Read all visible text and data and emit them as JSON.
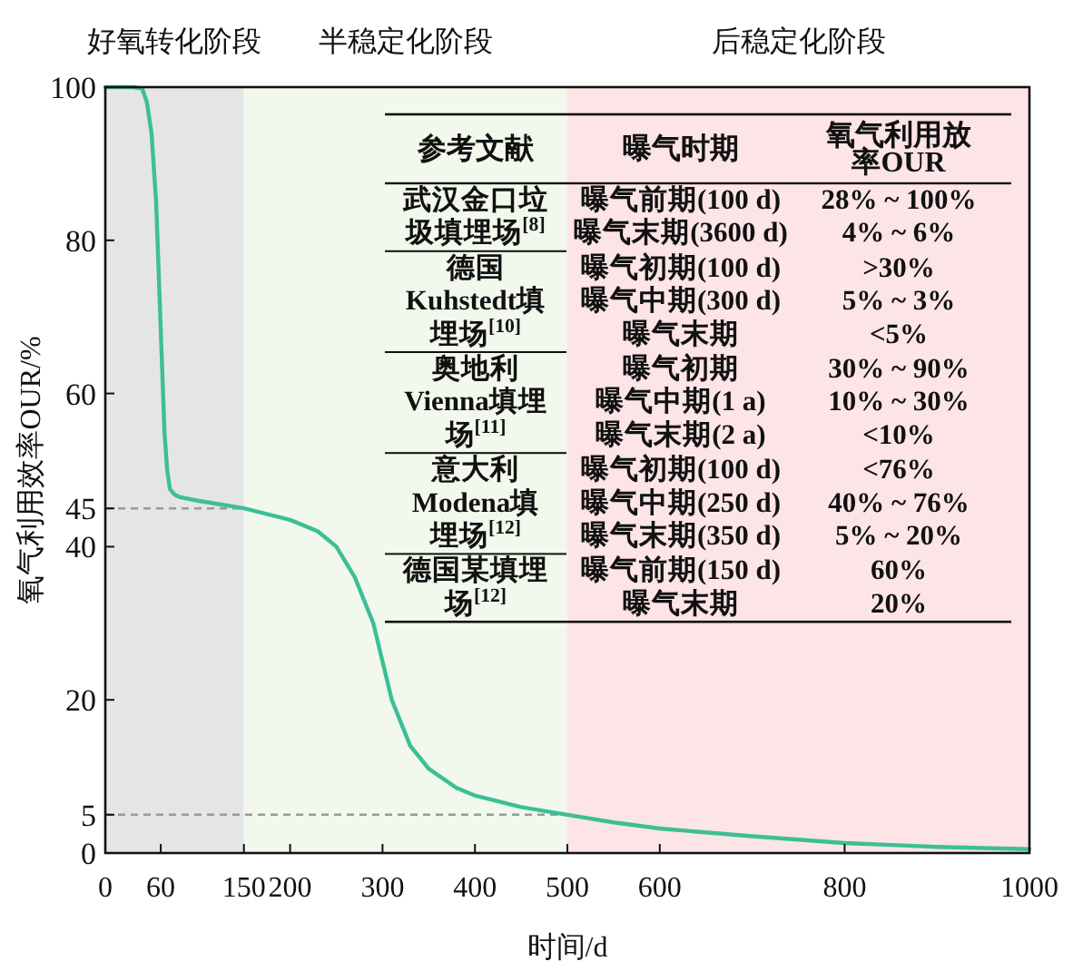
{
  "chart_data": {
    "type": "line",
    "xlabel": "时间/d",
    "ylabel": "氧气利用效率OUR/%",
    "x": [
      0,
      20,
      30,
      40,
      45,
      50,
      55,
      58,
      61,
      64,
      67,
      70,
      75,
      80,
      100,
      150,
      200,
      230,
      250,
      270,
      290,
      300,
      310,
      330,
      350,
      380,
      400,
      450,
      500,
      550,
      600,
      700,
      800,
      900,
      1000
    ],
    "series": [
      {
        "color": "#3cbf95",
        "values": [
          100,
          100,
          100,
          99.8,
          98,
          94,
          85,
          75,
          65,
          55,
          50,
          47.5,
          46.8,
          46.5,
          46,
          45,
          43.5,
          42,
          40,
          36,
          30,
          25,
          20,
          14,
          11,
          8.5,
          7.5,
          6,
          5,
          4,
          3.2,
          2.2,
          1.3,
          0.8,
          0.5
        ]
      }
    ],
    "xlim": [
      0,
      1000
    ],
    "ylim": [
      0,
      100
    ],
    "xticks": [
      0,
      60,
      150,
      200,
      300,
      400,
      500,
      600,
      800,
      1000
    ],
    "yticks": [
      0,
      5,
      20,
      40,
      45,
      60,
      80,
      100
    ],
    "grid": false,
    "marker": "none",
    "line_style": "solid",
    "bands": [
      {
        "axis": "x",
        "from": 0,
        "to": 150,
        "label": "好氧转化阶段",
        "color": "#e5e5e5"
      },
      {
        "axis": "x",
        "from": 150,
        "to": 500,
        "label": "半稳定化阶段",
        "color": "#f2f8ec"
      },
      {
        "axis": "x",
        "from": 500,
        "to": 1000,
        "label": "后稳定化阶段",
        "color": "#fde4e7"
      }
    ],
    "ref_lines": [
      {
        "axis": "y",
        "value": 45,
        "color": "#999999",
        "line_style": "dashed"
      },
      {
        "axis": "y",
        "value": 5,
        "color": "#999999",
        "line_style": "dashed"
      }
    ],
    "annotations": [
      "参考文献",
      "曝气时期",
      "氧气利用放率OUR",
      "武汉金口垃圾填埋场$^{[8]}$",
      "曝气前期(100 d)",
      "28% ~ 100%",
      "曝气末期(3600 d)",
      "4% ~ 6%",
      "德国Kuhstedt填埋场$^{[10]}$",
      "曝气初期(100 d)",
      ">30%",
      "曝气中期(300 d)",
      "5% ~ 3%",
      "曝气末期",
      "<5%",
      "奥地利Vienna填埋场$^{[11]}$",
      "曝气初期",
      "30% ~ 90%",
      "曝气中期(1 a)",
      "10% ~ 30%",
      "曝气末期(2 a)",
      "<10%",
      "意大利Modena填埋场$^{[12]}$",
      "曝气初期(100 d)",
      "<76%",
      "曝气中期(250 d)",
      "40% ~ 76%",
      "曝气末期(350 d)",
      "5% ~ 20%",
      "德国某填埋场$^{[12]}$",
      "曝气前期(150 d)",
      "60%",
      "曝气末期",
      "20%"
    ]
  }
}
